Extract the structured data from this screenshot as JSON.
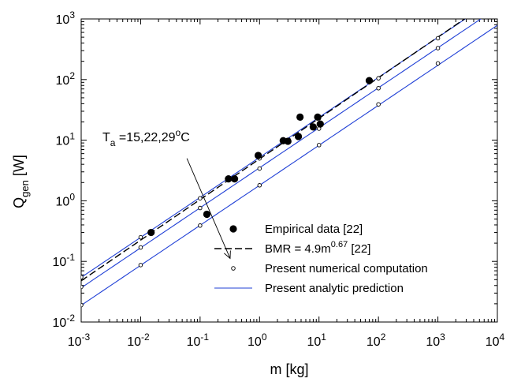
{
  "chart_data": {
    "type": "scatter",
    "x_scale": "log",
    "y_scale": "log",
    "xlim": [
      0.001,
      10000
    ],
    "ylim": [
      0.01,
      1000
    ],
    "grid": false,
    "legend_position": "bottom-right",
    "title": "",
    "xlabel": "m [kg]",
    "ylabel": {
      "base": "Q",
      "sub": "gen",
      "rest": " [W]"
    },
    "x_ticks": [
      {
        "value": 0.001,
        "base": "10",
        "exp": "-3"
      },
      {
        "value": 0.01,
        "base": "10",
        "exp": "-2"
      },
      {
        "value": 0.1,
        "base": "10",
        "exp": "-1"
      },
      {
        "value": 1,
        "base": "10",
        "exp": "0"
      },
      {
        "value": 10,
        "base": "10",
        "exp": "1"
      },
      {
        "value": 100,
        "base": "10",
        "exp": "2"
      },
      {
        "value": 1000,
        "base": "10",
        "exp": "3"
      },
      {
        "value": 10000,
        "base": "10",
        "exp": "4"
      }
    ],
    "y_ticks": [
      {
        "value": 0.01,
        "base": "10",
        "exp": "-2"
      },
      {
        "value": 0.1,
        "base": "10",
        "exp": "-1"
      },
      {
        "value": 1,
        "base": "10",
        "exp": "0"
      },
      {
        "value": 10,
        "base": "10",
        "exp": "1"
      },
      {
        "value": 100,
        "base": "10",
        "exp": "2"
      },
      {
        "value": 1000,
        "base": "10",
        "exp": "3"
      }
    ],
    "annotation": {
      "parts": [
        {
          "text": "T",
          "sub": "a"
        },
        {
          "text": " =15,22,29",
          "sup": "o"
        },
        {
          "text": "C"
        }
      ],
      "arrow_from": {
        "x": 0.06,
        "y": 5.0
      },
      "arrow_to": {
        "x": 0.32,
        "y": 0.112
      }
    },
    "series": [
      {
        "name": "Empirical data [22]",
        "kind": "filled-dot",
        "color": "#000000",
        "points": [
          {
            "x": 0.015,
            "y": 0.3
          },
          {
            "x": 0.13,
            "y": 0.6
          },
          {
            "x": 0.3,
            "y": 2.3
          },
          {
            "x": 0.38,
            "y": 2.3
          },
          {
            "x": 0.95,
            "y": 5.6
          },
          {
            "x": 2.5,
            "y": 9.8
          },
          {
            "x": 3.0,
            "y": 9.6
          },
          {
            "x": 4.5,
            "y": 11.5
          },
          {
            "x": 4.8,
            "y": 24
          },
          {
            "x": 8.0,
            "y": 16.5
          },
          {
            "x": 9.5,
            "y": 24
          },
          {
            "x": 10.5,
            "y": 18.5
          },
          {
            "x": 70,
            "y": 96
          }
        ]
      },
      {
        "name": "BMR = 4.9m",
        "name_sup": "0.67",
        "name_suffix": " [22]",
        "kind": "dashed-line",
        "color": "#000000",
        "coef": 4.9,
        "exponent": 0.67,
        "x_range": [
          0.001,
          10000
        ]
      },
      {
        "name": "Present numerical computation",
        "kind": "open-dot",
        "color": "#000000",
        "points": [
          {
            "x": 0.001,
            "y": 0.055
          },
          {
            "x": 0.01,
            "y": 0.25
          },
          {
            "x": 0.1,
            "y": 1.1
          },
          {
            "x": 1,
            "y": 5.0
          },
          {
            "x": 10,
            "y": 23
          },
          {
            "x": 100,
            "y": 105
          },
          {
            "x": 1000,
            "y": 480
          },
          {
            "x": 0.001,
            "y": 0.038
          },
          {
            "x": 0.01,
            "y": 0.17
          },
          {
            "x": 0.1,
            "y": 0.76
          },
          {
            "x": 1,
            "y": 3.4
          },
          {
            "x": 10,
            "y": 15.5
          },
          {
            "x": 100,
            "y": 72
          },
          {
            "x": 1000,
            "y": 330
          },
          {
            "x": 0.001,
            "y": 0.019
          },
          {
            "x": 0.01,
            "y": 0.087
          },
          {
            "x": 0.1,
            "y": 0.39
          },
          {
            "x": 1,
            "y": 1.8
          },
          {
            "x": 10,
            "y": 8.3
          },
          {
            "x": 100,
            "y": 39
          },
          {
            "x": 1000,
            "y": 185
          }
        ]
      },
      {
        "name": "Present analytic prediction",
        "kind": "solid-line",
        "color": "#1f3fd6",
        "lines": [
          {
            "coef": 5.2,
            "exponent": 0.66,
            "x_range": [
              0.001,
              10000
            ]
          },
          {
            "coef": 3.5,
            "exponent": 0.66,
            "x_range": [
              0.001,
              10000
            ]
          },
          {
            "coef": 1.8,
            "exponent": 0.66,
            "x_range": [
              0.001,
              10000
            ]
          }
        ]
      }
    ]
  }
}
